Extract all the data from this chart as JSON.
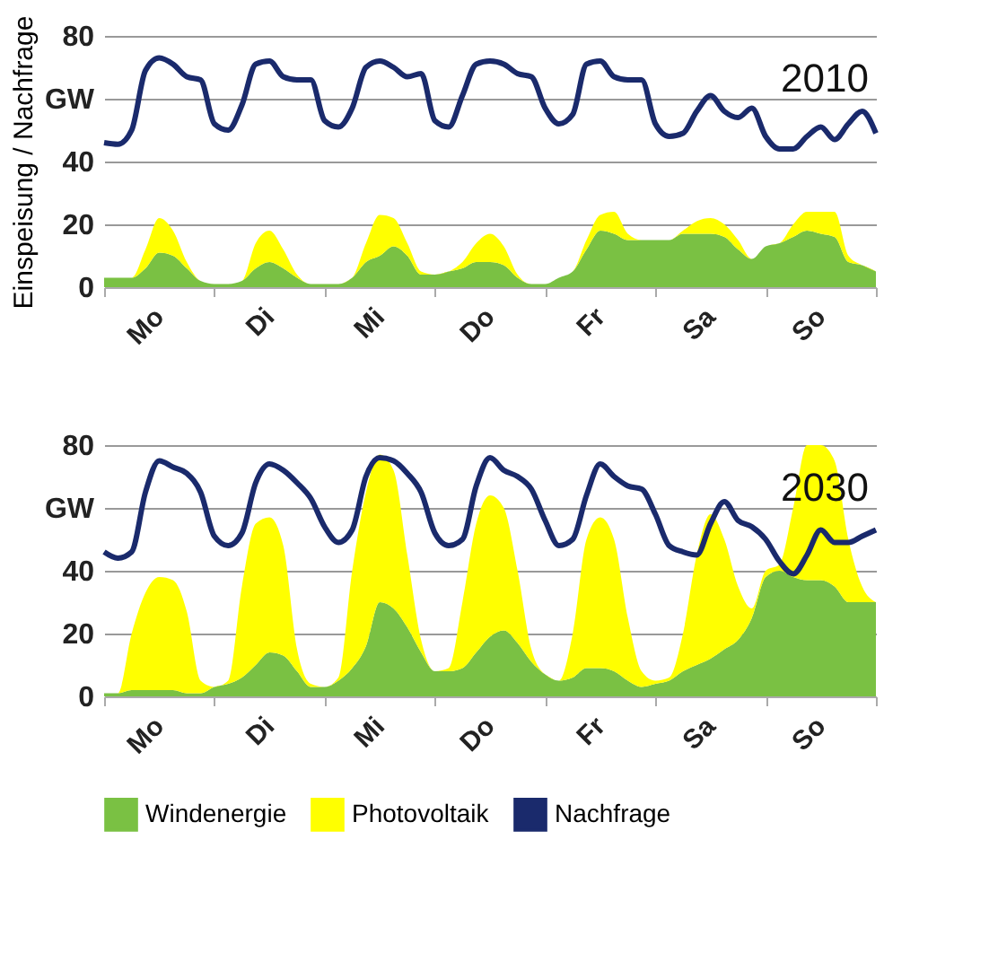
{
  "chart_data": [
    {
      "type": "area",
      "title": "2010",
      "ylabel": "Einspeisung / Nachfrage",
      "stacked": true,
      "grid": "y",
      "legend": false,
      "categories": [
        null,
        null,
        null,
        null,
        "Mo",
        null,
        null,
        null,
        null,
        null,
        null,
        null,
        "Di",
        null,
        null,
        null,
        null,
        null,
        null,
        null,
        "Mi",
        null,
        null,
        null,
        null,
        null,
        null,
        null,
        "Do",
        null,
        null,
        null,
        null,
        null,
        null,
        null,
        "Fr",
        null,
        null,
        null,
        null,
        null,
        null,
        null,
        "Sa",
        null,
        null,
        null,
        null,
        null,
        null,
        null,
        "So",
        null,
        null,
        null,
        null
      ],
      "ylim": [
        0,
        80
      ],
      "yticks": [
        0,
        20,
        40,
        {
          "value": 60,
          "label": "GW"
        },
        80
      ],
      "series": [
        {
          "color": "#7ac143",
          "values": [
            3,
            3,
            3,
            6,
            11,
            10,
            6,
            2,
            1,
            1,
            2,
            6,
            8,
            6,
            3,
            1,
            1,
            1,
            3,
            8,
            10,
            13,
            10,
            4,
            4,
            5,
            6,
            8,
            8,
            7,
            3,
            1,
            1,
            3,
            5,
            12,
            18,
            17,
            15,
            15,
            15,
            15,
            17,
            17,
            17,
            16,
            12,
            9,
            13,
            14,
            16,
            18,
            17,
            16,
            8,
            7,
            5
          ]
        },
        {
          "color": "#ffff00",
          "values": [
            0,
            0,
            0,
            6,
            11,
            8,
            2,
            0,
            0,
            0,
            0,
            8,
            10,
            6,
            1,
            0,
            0,
            0,
            0,
            6,
            13,
            9,
            4,
            1,
            0,
            0,
            2,
            6,
            9,
            6,
            1,
            0,
            0,
            0,
            0,
            3,
            5,
            7,
            2,
            0,
            0,
            0,
            1,
            4,
            5,
            4,
            3,
            0,
            0,
            0,
            4,
            6,
            7,
            8,
            2,
            0,
            0
          ]
        },
        {
          "type": "line",
          "color": "#1a2a6c",
          "values": [
            46,
            45.5,
            50,
            69,
            73,
            71,
            67,
            66,
            52,
            50,
            58,
            71,
            72,
            67,
            66,
            66,
            53,
            51,
            57,
            70,
            72,
            70,
            67,
            68,
            53,
            51,
            61,
            71,
            72,
            71,
            68,
            67,
            57,
            52,
            55,
            71,
            72,
            67,
            66,
            66,
            52,
            48,
            49,
            56,
            61,
            56,
            54,
            57,
            48,
            44,
            44,
            48,
            51,
            47,
            52,
            56,
            49
          ]
        }
      ]
    },
    {
      "type": "area",
      "title": "2030",
      "stacked": true,
      "grid": "y",
      "legend": "bottom",
      "categories": [
        null,
        null,
        null,
        null,
        "Mo",
        null,
        null,
        null,
        null,
        null,
        null,
        null,
        "Di",
        null,
        null,
        null,
        null,
        null,
        null,
        null,
        "Mi",
        null,
        null,
        null,
        null,
        null,
        null,
        null,
        "Do",
        null,
        null,
        null,
        null,
        null,
        null,
        null,
        "Fr",
        null,
        null,
        null,
        null,
        null,
        null,
        null,
        "Sa",
        null,
        null,
        null,
        null,
        null,
        null,
        null,
        "So",
        null,
        null,
        null,
        null
      ],
      "ylim": [
        0,
        80
      ],
      "yticks": [
        0,
        20,
        40,
        {
          "value": 60,
          "label": "GW"
        },
        80
      ],
      "series": [
        {
          "name": "Windenergie",
          "color": "#7ac143",
          "values": [
            1,
            1,
            2,
            2,
            2,
            2,
            1,
            1,
            3,
            4,
            6,
            10,
            14,
            13,
            8,
            3,
            3,
            5,
            9,
            16,
            30,
            28,
            22,
            14,
            8,
            8,
            9,
            14,
            19,
            21,
            17,
            11,
            7,
            5,
            6,
            9,
            9,
            8,
            5,
            3,
            4,
            5,
            8,
            10,
            12,
            15,
            18,
            25,
            38,
            40,
            38,
            37,
            37,
            35,
            30,
            30,
            30
          ]
        },
        {
          "name": "Photovoltaik",
          "color": "#ffff00",
          "values": [
            0,
            0,
            18,
            31,
            36,
            35,
            26,
            4,
            0,
            1,
            29,
            45,
            43,
            35,
            7,
            1,
            0,
            1,
            31,
            49,
            47,
            44,
            23,
            4,
            0,
            1,
            21,
            41,
            45,
            39,
            23,
            4,
            0,
            0,
            14,
            41,
            48,
            42,
            20,
            5,
            1,
            1,
            12,
            35,
            46,
            35,
            17,
            3,
            2,
            2,
            22,
            43,
            43,
            40,
            20,
            5,
            0
          ]
        },
        {
          "name": "Nachfrage",
          "type": "line",
          "color": "#1a2a6c",
          "values": [
            46,
            44,
            46,
            65,
            75,
            73,
            71,
            65,
            51,
            48,
            52,
            68,
            74,
            72,
            68,
            63,
            54,
            49,
            53,
            70,
            76,
            75,
            71,
            65,
            52,
            48,
            50,
            67,
            76,
            72,
            70,
            66,
            56,
            48,
            50,
            64,
            74,
            70,
            67,
            66,
            58,
            48,
            46,
            45,
            55,
            62,
            56,
            54,
            50,
            43,
            39,
            45,
            53,
            49,
            49,
            51,
            53
          ]
        }
      ]
    }
  ]
}
